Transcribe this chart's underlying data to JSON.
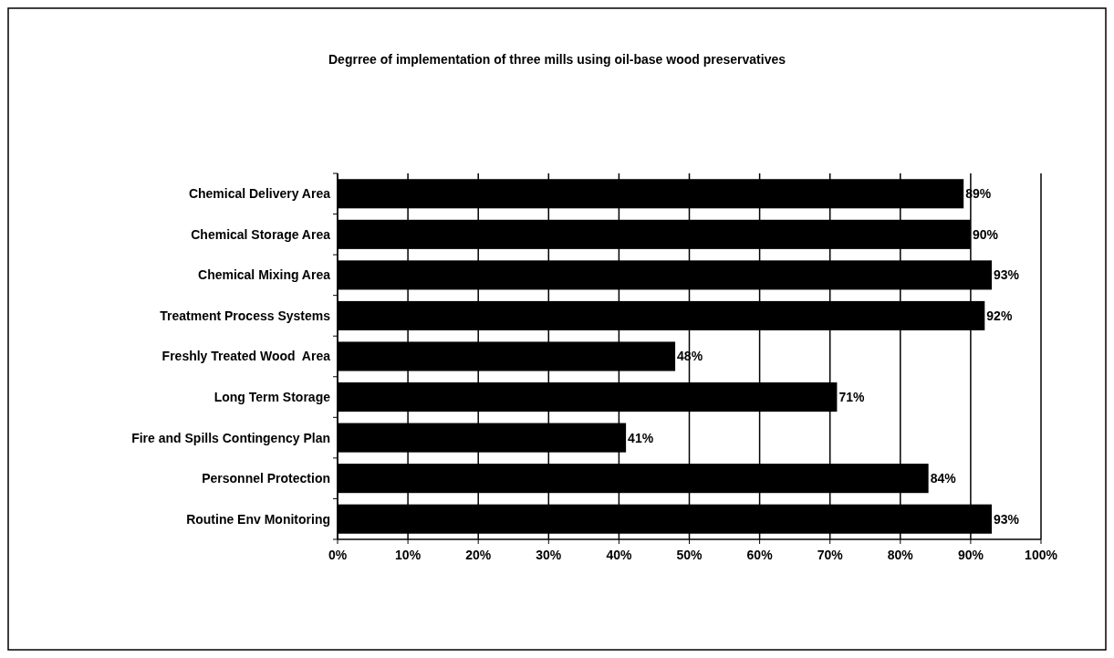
{
  "chart_data": {
    "type": "bar",
    "orientation": "horizontal",
    "title": "Degrree of implementation of three mills using oil-base wood preservatives",
    "categories": [
      "Chemical Delivery Area",
      "Chemical Storage Area",
      "Chemical Mixing Area",
      "Treatment Process Systems",
      "Freshly Treated Wood  Area",
      "Long Term Storage",
      "Fire and Spills Contingency Plan",
      "Personnel Protection",
      "Routine Env Monitoring"
    ],
    "values": [
      89,
      90,
      93,
      92,
      48,
      71,
      41,
      84,
      93
    ],
    "value_labels": [
      "89%",
      "90%",
      "93%",
      "92%",
      "48%",
      "71%",
      "41%",
      "84%",
      "93%"
    ],
    "color": "#000000",
    "xlim": [
      0,
      100
    ],
    "xticks": [
      {
        "value": 0,
        "label": "0%"
      },
      {
        "value": 10,
        "label": "10%"
      },
      {
        "value": 20,
        "label": "20%"
      },
      {
        "value": 30,
        "label": "30%"
      },
      {
        "value": 40,
        "label": "40%"
      },
      {
        "value": 50,
        "label": "50%"
      },
      {
        "value": 60,
        "label": "60%"
      },
      {
        "value": 70,
        "label": "70%"
      },
      {
        "value": 80,
        "label": "80%"
      },
      {
        "value": 90,
        "label": "90%"
      },
      {
        "value": 100,
        "label": "100%"
      }
    ],
    "grid": "x"
  }
}
